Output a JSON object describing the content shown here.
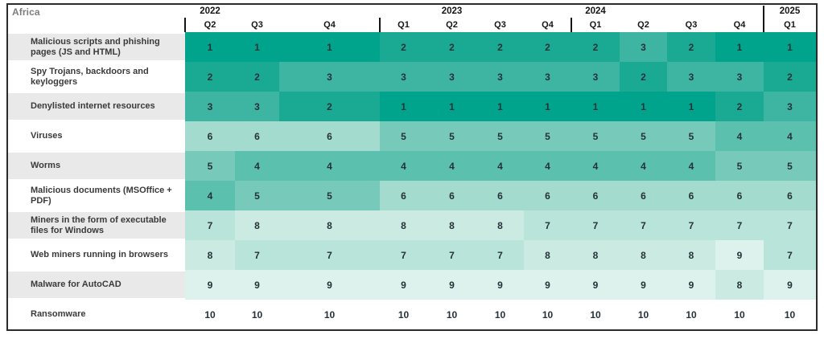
{
  "title": "Africa",
  "chart_data": {
    "type": "heatmap",
    "title": "Africa",
    "legend_position": "none",
    "grid": false,
    "value_range": [
      1,
      10
    ],
    "year_groups": [
      {
        "label": "2022",
        "quarters": [
          "Q2",
          "Q3",
          "Q4"
        ],
        "label_col_index": 0
      },
      {
        "label": "2023",
        "quarters": [
          "Q1",
          "Q2",
          "Q3",
          "Q4"
        ],
        "label_col_index": 4
      },
      {
        "label": "2024",
        "quarters": [
          "Q1",
          "Q2",
          "Q3",
          "Q4"
        ],
        "label_col_index": 7
      },
      {
        "label": "2025",
        "quarters": [
          "Q1"
        ],
        "label_col_index": 11
      }
    ],
    "columns": [
      "2022 Q2",
      "2022 Q3",
      "2022 Q4",
      "2023 Q1",
      "2023 Q2",
      "2023 Q3",
      "2023 Q4",
      "2024 Q1",
      "2024 Q2",
      "2024 Q3",
      "2024 Q4",
      "2025 Q1"
    ],
    "rows": [
      {
        "label": "Malicious scripts and phishing pages (JS and HTML)",
        "values": [
          1,
          1,
          1,
          2,
          2,
          2,
          2,
          2,
          3,
          2,
          1,
          1
        ]
      },
      {
        "label": "Spy Trojans, backdoors and keyloggers",
        "values": [
          2,
          2,
          3,
          3,
          3,
          3,
          3,
          3,
          2,
          3,
          3,
          2
        ]
      },
      {
        "label": "Denylisted internet resources",
        "values": [
          3,
          3,
          2,
          1,
          1,
          1,
          1,
          1,
          1,
          1,
          2,
          3
        ]
      },
      {
        "label": "Viruses",
        "values": [
          6,
          6,
          6,
          5,
          5,
          5,
          5,
          5,
          5,
          5,
          4,
          4
        ]
      },
      {
        "label": "Worms",
        "values": [
          5,
          4,
          4,
          4,
          4,
          4,
          4,
          4,
          4,
          4,
          5,
          5
        ]
      },
      {
        "label": "Malicious documents (MSOffice + PDF)",
        "values": [
          4,
          5,
          5,
          6,
          6,
          6,
          6,
          6,
          6,
          6,
          6,
          6
        ]
      },
      {
        "label": "Miners in the form of executable files for Windows",
        "values": [
          7,
          8,
          8,
          8,
          8,
          8,
          7,
          7,
          7,
          7,
          7,
          7
        ]
      },
      {
        "label": "Web miners running in browsers",
        "values": [
          8,
          7,
          7,
          7,
          7,
          7,
          8,
          8,
          8,
          8,
          9,
          7
        ]
      },
      {
        "label": "Malware for AutoCAD",
        "values": [
          9,
          9,
          9,
          9,
          9,
          9,
          9,
          9,
          9,
          9,
          8,
          9
        ]
      },
      {
        "label": "Ransomware",
        "values": [
          10,
          10,
          10,
          10,
          10,
          10,
          10,
          10,
          10,
          10,
          10,
          10
        ]
      }
    ],
    "rank_colors": {
      "1": "#00a48c",
      "2": "#1aaa94",
      "3": "#3eb5a2",
      "4": "#5cc0af",
      "5": "#77caba",
      "6": "#a3dbcf",
      "7": "#b9e4da",
      "8": "#cbeae2",
      "9": "#def2ed",
      "10": "#ffffff"
    },
    "colors": {
      "row_band": "#e9e9e9",
      "cell_text": "#253138",
      "region_title": "#7d7d7d",
      "header_text": "#151515",
      "border": "#2b2b2b"
    }
  }
}
